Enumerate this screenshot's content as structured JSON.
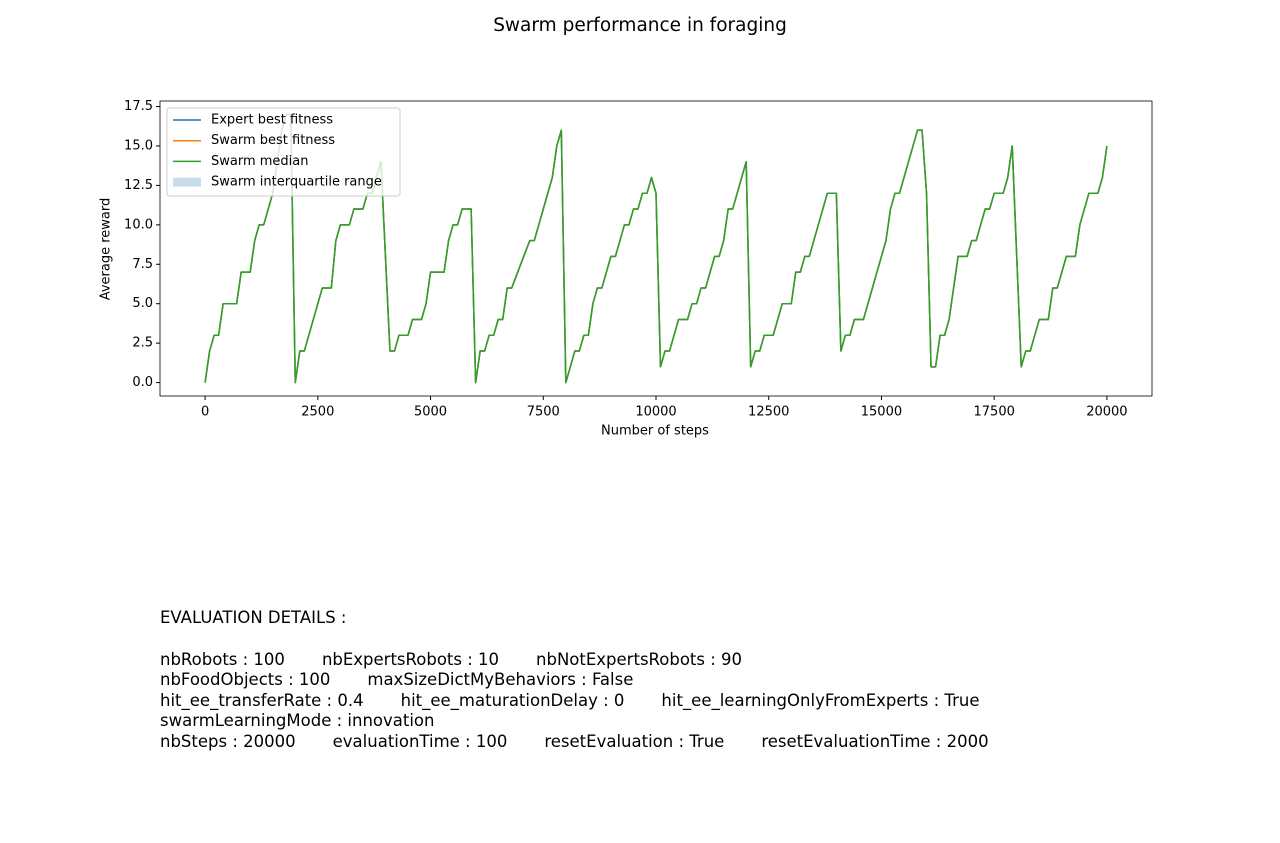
{
  "chart_data": {
    "type": "line",
    "title": "Swarm performance in foraging",
    "xlabel": "Number of steps",
    "ylabel": "Average reward",
    "x": [
      0,
      100,
      200,
      300,
      400,
      700,
      800,
      1000,
      1100,
      1200,
      1300,
      1400,
      1500,
      1600,
      1700,
      1800,
      1900,
      2000,
      2100,
      2200,
      2600,
      2800,
      2900,
      3000,
      3200,
      3300,
      3500,
      3600,
      3700,
      3800,
      3900,
      4100,
      4200,
      4300,
      4500,
      4600,
      4800,
      4900,
      5000,
      5300,
      5400,
      5500,
      5600,
      5700,
      5900,
      6000,
      6100,
      6200,
      6300,
      6400,
      6500,
      6600,
      6700,
      6800,
      7200,
      7300,
      7700,
      7800,
      7900,
      8000,
      8200,
      8300,
      8400,
      8500,
      8600,
      8700,
      8800,
      9000,
      9100,
      9300,
      9400,
      9500,
      9600,
      9700,
      9800,
      9900,
      10000,
      10100,
      10200,
      10300,
      10500,
      10700,
      10800,
      10900,
      11000,
      11100,
      11300,
      11400,
      11500,
      11600,
      11700,
      12000,
      12100,
      12200,
      12300,
      12400,
      12600,
      12800,
      13000,
      13100,
      13200,
      13300,
      13400,
      13800,
      14000,
      14100,
      14200,
      14300,
      14400,
      14600,
      15100,
      15200,
      15300,
      15400,
      15800,
      15900,
      16000,
      16100,
      16200,
      16300,
      16400,
      16500,
      16700,
      16900,
      17000,
      17100,
      17300,
      17400,
      17500,
      17700,
      17800,
      17900,
      18100,
      18200,
      18300,
      18500,
      18700,
      18800,
      18900,
      19100,
      19300,
      19400,
      19600,
      19800,
      19900,
      20000
    ],
    "series": [
      {
        "name": "Expert best fitness",
        "color": "#1f77b4",
        "values": [
          0,
          2,
          3,
          3,
          5,
          5,
          7,
          7,
          9,
          10,
          10,
          11,
          12,
          14,
          16,
          17,
          17,
          0,
          2,
          2,
          6,
          6,
          9,
          10,
          10,
          11,
          11,
          12,
          12,
          13,
          14,
          2,
          2,
          3,
          3,
          4,
          4,
          5,
          7,
          7,
          9,
          10,
          10,
          11,
          11,
          0,
          2,
          2,
          3,
          3,
          4,
          4,
          6,
          6,
          9,
          9,
          13,
          15,
          16,
          0,
          2,
          2,
          3,
          3,
          5,
          6,
          6,
          8,
          8,
          10,
          10,
          11,
          11,
          12,
          12,
          13,
          12,
          1,
          2,
          2,
          4,
          4,
          5,
          5,
          6,
          6,
          8,
          8,
          9,
          11,
          11,
          14,
          1,
          2,
          2,
          3,
          3,
          5,
          5,
          7,
          7,
          8,
          8,
          12,
          12,
          2,
          3,
          3,
          4,
          4,
          9,
          11,
          12,
          12,
          16,
          16,
          12,
          1,
          1,
          3,
          3,
          4,
          8,
          8,
          9,
          9,
          11,
          11,
          12,
          12,
          13,
          15,
          1,
          2,
          2,
          4,
          4,
          6,
          6,
          8,
          8,
          10,
          12,
          12,
          13,
          15
        ]
      },
      {
        "name": "Swarm best fitness",
        "color": "#ff7f0e",
        "values": [
          0,
          2,
          3,
          3,
          5,
          5,
          7,
          7,
          9,
          10,
          10,
          11,
          12,
          14,
          16,
          17,
          17,
          0,
          2,
          2,
          6,
          6,
          9,
          10,
          10,
          11,
          11,
          12,
          12,
          13,
          14,
          2,
          2,
          3,
          3,
          4,
          4,
          5,
          7,
          7,
          9,
          10,
          10,
          11,
          11,
          0,
          2,
          2,
          3,
          3,
          4,
          4,
          6,
          6,
          9,
          9,
          13,
          15,
          16,
          0,
          2,
          2,
          3,
          3,
          5,
          6,
          6,
          8,
          8,
          10,
          10,
          11,
          11,
          12,
          12,
          13,
          12,
          1,
          2,
          2,
          4,
          4,
          5,
          5,
          6,
          6,
          8,
          8,
          9,
          11,
          11,
          14,
          1,
          2,
          2,
          3,
          3,
          5,
          5,
          7,
          7,
          8,
          8,
          12,
          12,
          2,
          3,
          3,
          4,
          4,
          9,
          11,
          12,
          12,
          16,
          16,
          12,
          1,
          1,
          3,
          3,
          4,
          8,
          8,
          9,
          9,
          11,
          11,
          12,
          12,
          13,
          15,
          1,
          2,
          2,
          4,
          4,
          6,
          6,
          8,
          8,
          10,
          12,
          12,
          13,
          15
        ]
      },
      {
        "name": "Swarm median",
        "color": "#2ca02c",
        "values": [
          0,
          2,
          3,
          3,
          5,
          5,
          7,
          7,
          9,
          10,
          10,
          11,
          12,
          14,
          16,
          17,
          17,
          0,
          2,
          2,
          6,
          6,
          9,
          10,
          10,
          11,
          11,
          12,
          12,
          13,
          14,
          2,
          2,
          3,
          3,
          4,
          4,
          5,
          7,
          7,
          9,
          10,
          10,
          11,
          11,
          0,
          2,
          2,
          3,
          3,
          4,
          4,
          6,
          6,
          9,
          9,
          13,
          15,
          16,
          0,
          2,
          2,
          3,
          3,
          5,
          6,
          6,
          8,
          8,
          10,
          10,
          11,
          11,
          12,
          12,
          13,
          12,
          1,
          2,
          2,
          4,
          4,
          5,
          5,
          6,
          6,
          8,
          8,
          9,
          11,
          11,
          14,
          1,
          2,
          2,
          3,
          3,
          5,
          5,
          7,
          7,
          8,
          8,
          12,
          12,
          2,
          3,
          3,
          4,
          4,
          9,
          11,
          12,
          12,
          16,
          16,
          12,
          1,
          1,
          3,
          3,
          4,
          8,
          8,
          9,
          9,
          11,
          11,
          12,
          12,
          13,
          15,
          1,
          2,
          2,
          4,
          4,
          6,
          6,
          8,
          8,
          10,
          12,
          12,
          13,
          15
        ]
      },
      {
        "name": "Swarm interquartile range",
        "color": "#1f77b4",
        "kind": "band",
        "values": [
          0,
          2,
          3,
          3,
          5,
          5,
          7,
          7,
          9,
          10,
          10,
          11,
          12,
          14,
          16,
          17,
          17,
          0,
          2,
          2,
          6,
          6,
          9,
          10,
          10,
          11,
          11,
          12,
          12,
          13,
          14,
          2,
          2,
          3,
          3,
          4,
          4,
          5,
          7,
          7,
          9,
          10,
          10,
          11,
          11,
          0,
          2,
          2,
          3,
          3,
          4,
          4,
          6,
          6,
          9,
          9,
          13,
          15,
          16,
          0,
          2,
          2,
          3,
          3,
          5,
          6,
          6,
          8,
          8,
          10,
          10,
          11,
          11,
          12,
          12,
          13,
          12,
          1,
          2,
          2,
          4,
          4,
          5,
          5,
          6,
          6,
          8,
          8,
          9,
          11,
          11,
          14,
          1,
          2,
          2,
          3,
          3,
          5,
          5,
          7,
          7,
          8,
          8,
          12,
          12,
          2,
          3,
          3,
          4,
          4,
          9,
          11,
          12,
          12,
          16,
          16,
          12,
          1,
          1,
          3,
          3,
          4,
          8,
          8,
          9,
          9,
          11,
          11,
          12,
          12,
          13,
          15,
          1,
          2,
          2,
          4,
          4,
          6,
          6,
          8,
          8,
          10,
          12,
          12,
          13,
          15
        ]
      }
    ],
    "xlim": [
      -1000,
      21000
    ],
    "xticks": [
      0,
      2500,
      5000,
      7500,
      10000,
      12500,
      15000,
      17500,
      20000
    ],
    "ylim": [
      -0.85,
      17.85
    ],
    "yticks": [
      {
        "value": 0,
        "label": "0.0"
      },
      2.5,
      {
        "value": 5,
        "label": "5.0"
      },
      7.5,
      {
        "value": 10,
        "label": "10.0"
      },
      12.5,
      {
        "value": 15,
        "label": "15.0"
      },
      17.5
    ],
    "legend": "upper left",
    "grid": false
  },
  "details": {
    "title": "EVALUATION DETAILS :",
    "lines": [
      [
        "nbRobots : 100",
        "nbExpertsRobots : 10",
        "nbNotExpertsRobots : 90"
      ],
      [
        "nbFoodObjects : 100",
        "maxSizeDictMyBehaviors : False"
      ],
      [
        "hit_ee_transferRate : 0.4",
        "hit_ee_maturationDelay : 0",
        "hit_ee_learningOnlyFromExperts : True"
      ],
      [
        "swarmLearningMode : innovation"
      ],
      [
        "nbSteps : 20000",
        "evaluationTime : 100",
        "resetEvaluation : True",
        "resetEvaluationTime : 2000"
      ]
    ]
  }
}
